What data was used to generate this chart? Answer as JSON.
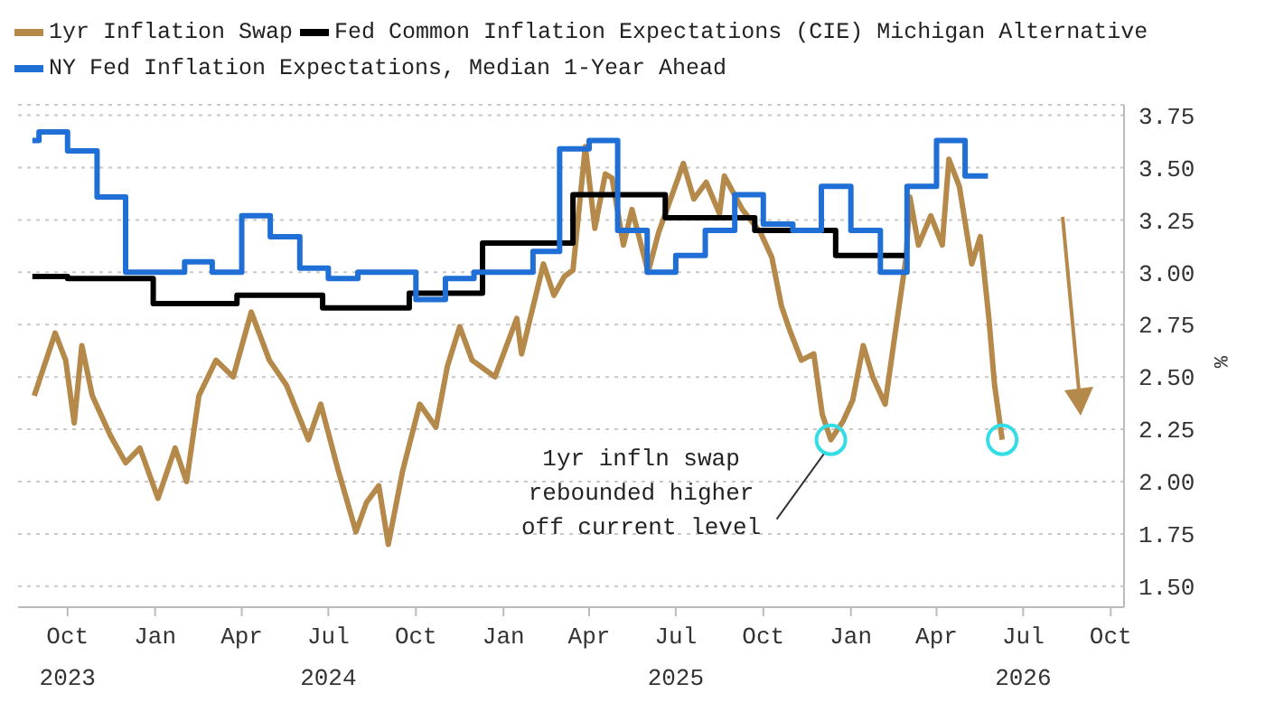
{
  "chart_data": {
    "type": "line",
    "ylabel": "%",
    "grid": "y",
    "legend": "top left",
    "xlim": [
      "2023-08-10",
      "2026-10-15"
    ],
    "xticks": [
      {
        "value": "2023-10-01",
        "label": "Oct\n2023"
      },
      {
        "value": "2024-01-01",
        "label": "Jan"
      },
      {
        "value": "2024-04-01",
        "label": "Apr"
      },
      {
        "value": "2024-07-01",
        "label": "Jul\n2024"
      },
      {
        "value": "2024-10-01",
        "label": "Oct"
      },
      {
        "value": "2025-01-01",
        "label": "Jan"
      },
      {
        "value": "2025-04-01",
        "label": "Apr"
      },
      {
        "value": "2025-07-01",
        "label": "Jul\n2025"
      },
      {
        "value": "2025-10-01",
        "label": "Oct"
      },
      {
        "value": "2026-01-01",
        "label": "Jan"
      },
      {
        "value": "2026-04-01",
        "label": "Apr"
      },
      {
        "value": "2026-07-01",
        "label": "Jul\n2026"
      },
      {
        "value": "2026-10-01",
        "label": "Oct"
      }
    ],
    "ylim": [
      1.4,
      3.8
    ],
    "yticks": [
      {
        "value": 1.5,
        "label": "1.50"
      },
      {
        "value": 1.75,
        "label": "1.75"
      },
      {
        "value": 2,
        "label": "2.00"
      },
      {
        "value": 2.25,
        "label": "2.25"
      },
      {
        "value": 2.5,
        "label": "2.50"
      },
      {
        "value": 2.75,
        "label": "2.75"
      },
      {
        "value": 3,
        "label": "3.00"
      },
      {
        "value": 3.25,
        "label": "3.25"
      },
      {
        "value": 3.5,
        "label": "3.50"
      },
      {
        "value": 3.75,
        "label": "3.75"
      }
    ],
    "series": [
      {
        "name": "1yr Inflation Swap",
        "color": "#b5894a",
        "type": "line",
        "x": [
          "2023-08-27",
          "2023-09-18",
          "2023-09-29",
          "2023-10-08",
          "2023-10-16",
          "2023-10-27",
          "2023-11-15",
          "2023-12-01",
          "2023-12-16",
          "2024-01-04",
          "2024-01-22",
          "2024-02-03",
          "2024-02-16",
          "2024-03-05",
          "2024-03-23",
          "2024-04-11",
          "2024-04-30",
          "2024-05-18",
          "2024-06-10",
          "2024-06-23",
          "2024-07-11",
          "2024-07-30",
          "2024-08-10",
          "2024-08-23",
          "2024-09-02",
          "2024-09-17",
          "2024-10-05",
          "2024-10-22",
          "2024-11-03",
          "2024-11-16",
          "2024-11-29",
          "2024-12-23",
          "2025-01-15",
          "2025-01-20",
          "2025-02-12",
          "2025-02-23",
          "2025-03-06",
          "2025-03-15",
          "2025-03-28",
          "2025-04-07",
          "2025-04-18",
          "2025-04-25",
          "2025-05-07",
          "2025-05-16",
          "2025-06-02",
          "2025-06-13",
          "2025-07-09",
          "2025-07-20",
          "2025-08-02",
          "2025-08-16",
          "2025-08-21",
          "2025-09-09",
          "2025-09-28",
          "2025-10-10",
          "2025-10-20",
          "2025-10-29",
          "2025-11-10",
          "2025-11-23",
          "2025-12-02",
          "2025-12-11",
          "2025-12-24",
          "2026-01-03",
          "2026-01-14",
          "2026-01-24",
          "2026-02-06",
          "2026-02-15",
          "2026-02-28",
          "2026-03-04",
          "2026-03-13",
          "2026-03-26",
          "2026-04-07",
          "2026-04-14",
          "2026-04-25",
          "2026-05-08",
          "2026-05-17",
          "2026-05-26",
          "2026-06-01",
          "2026-06-09"
        ],
        "values": [
          2.41,
          2.71,
          2.58,
          2.28,
          2.65,
          2.41,
          2.22,
          2.09,
          2.16,
          1.92,
          2.16,
          2.0,
          2.41,
          2.58,
          2.5,
          2.81,
          2.58,
          2.46,
          2.2,
          2.37,
          2.06,
          1.76,
          1.9,
          1.98,
          1.7,
          2.05,
          2.37,
          2.26,
          2.55,
          2.74,
          2.58,
          2.5,
          2.78,
          2.61,
          3.04,
          2.89,
          2.98,
          3.01,
          3.6,
          3.21,
          3.47,
          3.45,
          3.13,
          3.3,
          3.0,
          3.19,
          3.52,
          3.35,
          3.43,
          3.28,
          3.46,
          3.3,
          3.19,
          3.07,
          2.84,
          2.72,
          2.58,
          2.61,
          2.32,
          2.2,
          2.29,
          2.39,
          2.65,
          2.5,
          2.37,
          2.66,
          3.07,
          3.36,
          3.13,
          3.27,
          3.13,
          3.54,
          3.41,
          3.04,
          3.17,
          2.78,
          2.46,
          2.2
        ]
      },
      {
        "name": "Fed Common Inflation Expectations (CIE) Michigan Alternative",
        "color": "#000000",
        "type": "step",
        "x": [
          "2023-08-25",
          "2023-10-01",
          "2023-12-30",
          "2024-03-27",
          "2024-06-25",
          "2024-09-24",
          "2024-12-10",
          "2025-03-15",
          "2025-06-20",
          "2025-09-22",
          "2025-12-16",
          "2026-02-28"
        ],
        "values": [
          2.98,
          2.97,
          2.85,
          2.89,
          2.83,
          2.9,
          3.14,
          3.37,
          3.26,
          3.2,
          3.08,
          3.08
        ]
      },
      {
        "name": "NY Fed Inflation Expectations, Median 1-Year Ahead",
        "color": "#1f6fd6",
        "type": "step",
        "x": [
          "2023-08-25",
          "2023-09-01",
          "2023-10-01",
          "2023-11-01",
          "2023-12-01",
          "2024-01-01",
          "2024-02-01",
          "2024-03-01",
          "2024-04-01",
          "2024-05-01",
          "2024-06-01",
          "2024-07-01",
          "2024-08-01",
          "2024-09-01",
          "2024-10-01",
          "2024-11-01",
          "2024-12-01",
          "2025-01-01",
          "2025-02-01",
          "2025-03-01",
          "2025-04-01",
          "2025-05-01",
          "2025-06-01",
          "2025-07-01",
          "2025-08-01",
          "2025-09-01",
          "2025-10-01",
          "2025-11-01",
          "2025-12-01",
          "2026-01-01",
          "2026-02-01",
          "2026-03-01",
          "2026-04-01",
          "2026-05-01",
          "2026-05-25"
        ],
        "values": [
          3.63,
          3.67,
          3.58,
          3.36,
          3.0,
          3.0,
          3.05,
          3.0,
          3.27,
          3.17,
          3.02,
          2.97,
          3.0,
          3.0,
          2.87,
          2.97,
          3.0,
          3.0,
          3.1,
          3.59,
          3.63,
          3.2,
          3.0,
          3.08,
          3.2,
          3.37,
          3.23,
          3.2,
          3.41,
          3.2,
          3.0,
          3.41,
          3.63,
          3.46,
          3.46
        ]
      }
    ],
    "annotations": [
      {
        "text": "1yr infln swap\nrebounded higher\noff current level",
        "x": "2025-12-11",
        "y": 2.2
      }
    ]
  }
}
